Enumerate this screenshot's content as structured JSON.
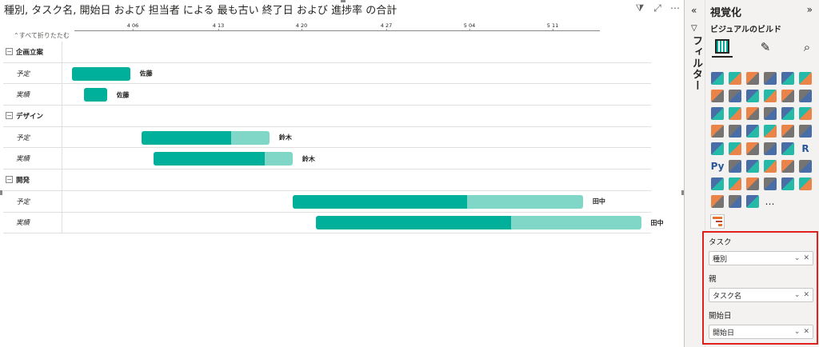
{
  "visual": {
    "title": "種別, タスク名, 開始日 および 担当者 による 最も古い 終了日 および 進捗率 の合計",
    "header_icons": [
      "filter-icon",
      "focus-mode-icon",
      "more-options-icon"
    ],
    "collapse_all": "すべて折りたたむ"
  },
  "axis": {
    "ticks": [
      "4 06",
      "4 13",
      "4 20",
      "4 27",
      "5 04",
      "5 11"
    ]
  },
  "rows": [
    {
      "type": "group",
      "toggle": "−",
      "label": "企画立案"
    },
    {
      "type": "child",
      "label": "予定",
      "assignee": "佐藤"
    },
    {
      "type": "child",
      "label": "実績",
      "assignee": "佐藤"
    },
    {
      "type": "group",
      "toggle": "−",
      "label": "デザイン"
    },
    {
      "type": "child",
      "label": "予定",
      "assignee": "鈴木"
    },
    {
      "type": "child",
      "label": "実績",
      "assignee": "鈴木"
    },
    {
      "type": "group",
      "toggle": "−",
      "label": "開発"
    },
    {
      "type": "child",
      "label": "予定",
      "assignee": "田中"
    },
    {
      "type": "child",
      "label": "実績",
      "assignee": "田中"
    }
  ],
  "gantt": {
    "axis_start": "2024-04-01",
    "axis_end": "2024-05-19",
    "tasks": [
      {
        "row": 1,
        "start": "2024-04-01",
        "end": "2024-04-06",
        "progress": 1.0
      },
      {
        "row": 2,
        "start": "2024-04-02",
        "end": "2024-04-04",
        "progress": 1.0
      },
      {
        "row": 4,
        "start": "2024-04-07",
        "end": "2024-04-18",
        "progress": 0.7
      },
      {
        "row": 5,
        "start": "2024-04-08",
        "end": "2024-04-20",
        "progress": 0.8
      },
      {
        "row": 7,
        "start": "2024-04-20",
        "end": "2024-05-15",
        "progress": 0.6
      },
      {
        "row": 8,
        "start": "2024-04-22",
        "end": "2024-05-20",
        "progress": 0.6
      }
    ],
    "colors": {
      "done": "#01b09b",
      "remaining": "#80d6c7"
    }
  },
  "filters": {
    "label": "フィルター"
  },
  "viz_pane": {
    "title": "視覚化",
    "build_label": "ビジュアルのビルド",
    "icons": [
      "stacked-bar-icon",
      "stacked-column-icon",
      "clustered-bar-icon",
      "clustered-column-icon",
      "100-stacked-bar-icon",
      "100-stacked-column-icon",
      "line-chart-icon",
      "area-chart-icon",
      "stacked-area-icon",
      "ribbon-chart-icon",
      "line-stacked-column-icon",
      "line-clustered-column-icon",
      "line-area-icon",
      "waterfall-icon",
      "funnel-icon",
      "scatter-icon",
      "pie-chart-icon",
      "donut-chart-icon",
      "treemap-icon",
      "map-icon",
      "filled-map-icon",
      "azure-map-icon",
      "gauge-icon",
      "card-icon",
      "multi-row-card-icon",
      "kpi-icon",
      "slicer-icon",
      "table-icon",
      "matrix-icon",
      "r-visual-icon",
      "python-visual-icon",
      "key-influencers-icon",
      "decomposition-tree-icon",
      "qa-icon",
      "smart-narrative-icon",
      "goals-icon",
      "paginated-report-icon",
      "power-apps-icon",
      "power-automate-icon",
      "arcgis-icon",
      "custom-visual-icon",
      "gantt-icon",
      "diamond-icon",
      "chevron-icon",
      "people-icon"
    ],
    "more": "…"
  },
  "field_wells": {
    "task": {
      "title": "タスク",
      "field": "種別"
    },
    "parent": {
      "title": "親",
      "field": "タスク名"
    },
    "start": {
      "title": "開始日",
      "field": "開始日"
    }
  }
}
